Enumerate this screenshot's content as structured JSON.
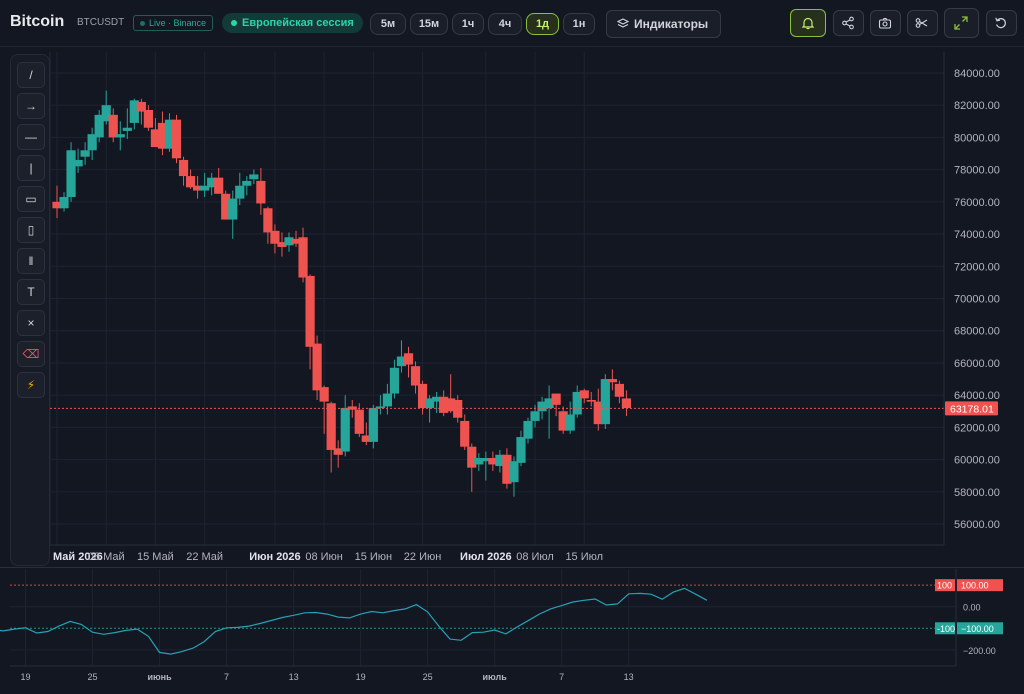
{
  "header": {
    "title": "Bitcoin",
    "symbol": "BTCUSDT",
    "source_badge": "Live · Binance",
    "session_badge": "Европейская сессия",
    "timeframes": [
      "5м",
      "15м",
      "1ч",
      "4ч",
      "1д",
      "1н"
    ],
    "active_timeframe": "1д",
    "indicators_label": "Индикаторы",
    "icon_buttons": [
      "bell-icon",
      "share-icon",
      "camera-icon",
      "scissors-icon",
      "expand-icon",
      "reset-icon"
    ]
  },
  "drawing_tools": [
    {
      "name": "trendline-tool",
      "glyph": "/"
    },
    {
      "name": "arrow-tool",
      "glyph": "→"
    },
    {
      "name": "horizontal-line-tool",
      "glyph": "—"
    },
    {
      "name": "vertical-line-tool",
      "glyph": "|"
    },
    {
      "name": "rectangle-tool",
      "glyph": "▭"
    },
    {
      "name": "vertical-rectangle-tool",
      "glyph": "▯"
    },
    {
      "name": "parallel-channel-tool",
      "glyph": "‖"
    },
    {
      "name": "text-tool",
      "glyph": "T"
    },
    {
      "name": "clear-tool",
      "glyph": "×"
    },
    {
      "name": "eraser-tool",
      "glyph": "⌫"
    },
    {
      "name": "lightning-tool",
      "glyph": "⚡"
    }
  ],
  "colors": {
    "background": "#131722",
    "grid": "#1f2330",
    "up": "#26a69a",
    "down": "#ef5350",
    "active": "#8bbf3e",
    "indicator_line": "#26a1b5"
  },
  "chart_data": [
    {
      "type": "candlestick",
      "symbol": "BTCUSDT",
      "interval": "1д",
      "y_axis": {
        "ticks": [
          84000,
          82000,
          80000,
          78000,
          76000,
          74000,
          72000,
          70000,
          68000,
          66000,
          64000,
          62000,
          60000,
          58000,
          56000
        ],
        "labels": [
          "84000.00",
          "82000.00",
          "80000.00",
          "78000.00",
          "76000.00",
          "74000.00",
          "72000.00",
          "70000.00",
          "68000.00",
          "66000.00",
          "64000.00",
          "62000.00",
          "60000.00",
          "58000.00",
          "56000.00"
        ],
        "range": [
          54700,
          85300
        ]
      },
      "x_axis": {
        "labels": [
          "Май 2026",
          "08 Май",
          "15 Май",
          "22 Май",
          "Июн 2026",
          "08 Июн",
          "15 Июн",
          "22 Июн",
          "Июл 2026",
          "08 Июл",
          "15 Июл"
        ],
        "bold_labels": [
          "Май 2026",
          "Июн 2026",
          "Июл 2026"
        ],
        "label_day_index": [
          0,
          7,
          14,
          21,
          31,
          38,
          45,
          52,
          61,
          68,
          75
        ]
      },
      "current_price": 63178.01,
      "current_price_label": "63178.01",
      "start_date": "2026-04-30",
      "candles": [
        {
          "o": 76000,
          "h": 77000,
          "l": 75000,
          "c": 75600
        },
        {
          "o": 75600,
          "h": 76600,
          "l": 75400,
          "c": 76300
        },
        {
          "o": 76300,
          "h": 79700,
          "l": 76000,
          "c": 79200
        },
        {
          "o": 78200,
          "h": 79300,
          "l": 77800,
          "c": 78600
        },
        {
          "o": 78800,
          "h": 79700,
          "l": 78300,
          "c": 79200
        },
        {
          "o": 79200,
          "h": 80600,
          "l": 78600,
          "c": 80200
        },
        {
          "o": 80000,
          "h": 81700,
          "l": 79700,
          "c": 81400
        },
        {
          "o": 81000,
          "h": 82900,
          "l": 80800,
          "c": 82000
        },
        {
          "o": 81400,
          "h": 81800,
          "l": 79700,
          "c": 80000
        },
        {
          "o": 80000,
          "h": 81000,
          "l": 79200,
          "c": 80200
        },
        {
          "o": 80400,
          "h": 81800,
          "l": 79900,
          "c": 80600
        },
        {
          "o": 80900,
          "h": 82400,
          "l": 80500,
          "c": 82300
        },
        {
          "o": 82200,
          "h": 82400,
          "l": 80800,
          "c": 81600
        },
        {
          "o": 81700,
          "h": 82000,
          "l": 80400,
          "c": 80600
        },
        {
          "o": 80500,
          "h": 81200,
          "l": 79700,
          "c": 79400
        },
        {
          "o": 80900,
          "h": 81600,
          "l": 78900,
          "c": 79300
        },
        {
          "o": 79300,
          "h": 81500,
          "l": 79100,
          "c": 81100
        },
        {
          "o": 81100,
          "h": 81400,
          "l": 78400,
          "c": 78700
        },
        {
          "o": 78600,
          "h": 78800,
          "l": 77000,
          "c": 77600
        },
        {
          "o": 77600,
          "h": 78000,
          "l": 76800,
          "c": 76900
        },
        {
          "o": 77000,
          "h": 77600,
          "l": 76200,
          "c": 76700
        },
        {
          "o": 76700,
          "h": 77800,
          "l": 76300,
          "c": 77000
        },
        {
          "o": 76900,
          "h": 77800,
          "l": 76400,
          "c": 77500
        },
        {
          "o": 77500,
          "h": 78100,
          "l": 76500,
          "c": 76500
        },
        {
          "o": 76500,
          "h": 76700,
          "l": 74900,
          "c": 74900
        },
        {
          "o": 74900,
          "h": 76700,
          "l": 73700,
          "c": 76200
        },
        {
          "o": 76200,
          "h": 77800,
          "l": 75800,
          "c": 77000
        },
        {
          "o": 77000,
          "h": 77600,
          "l": 76400,
          "c": 77300
        },
        {
          "o": 77400,
          "h": 78000,
          "l": 77100,
          "c": 77700
        },
        {
          "o": 77300,
          "h": 78100,
          "l": 75200,
          "c": 75900
        },
        {
          "o": 75600,
          "h": 75700,
          "l": 73400,
          "c": 74100
        },
        {
          "o": 74200,
          "h": 74600,
          "l": 72800,
          "c": 73400
        },
        {
          "o": 73500,
          "h": 74100,
          "l": 72600,
          "c": 73200
        },
        {
          "o": 73300,
          "h": 74100,
          "l": 72900,
          "c": 73800
        },
        {
          "o": 73700,
          "h": 74200,
          "l": 73200,
          "c": 73400
        },
        {
          "o": 73800,
          "h": 74400,
          "l": 71000,
          "c": 71300
        },
        {
          "o": 71400,
          "h": 71500,
          "l": 65600,
          "c": 67000
        },
        {
          "o": 67200,
          "h": 67700,
          "l": 63700,
          "c": 64300
        },
        {
          "o": 64500,
          "h": 64600,
          "l": 61600,
          "c": 63600
        },
        {
          "o": 63500,
          "h": 63600,
          "l": 59200,
          "c": 60600
        },
        {
          "o": 60700,
          "h": 61200,
          "l": 59500,
          "c": 60300
        },
        {
          "o": 60500,
          "h": 64000,
          "l": 60200,
          "c": 63200
        },
        {
          "o": 63300,
          "h": 63700,
          "l": 62600,
          "c": 63100
        },
        {
          "o": 63100,
          "h": 63500,
          "l": 61400,
          "c": 61600
        },
        {
          "o": 61500,
          "h": 62300,
          "l": 60900,
          "c": 61100
        },
        {
          "o": 61100,
          "h": 63400,
          "l": 60700,
          "c": 63200
        },
        {
          "o": 63200,
          "h": 64000,
          "l": 62800,
          "c": 63300
        },
        {
          "o": 63300,
          "h": 64700,
          "l": 62800,
          "c": 64100
        },
        {
          "o": 64100,
          "h": 66200,
          "l": 63800,
          "c": 65700
        },
        {
          "o": 65800,
          "h": 67400,
          "l": 65400,
          "c": 66400
        },
        {
          "o": 66600,
          "h": 67000,
          "l": 65100,
          "c": 65900
        },
        {
          "o": 65800,
          "h": 66100,
          "l": 64100,
          "c": 64600
        },
        {
          "o": 64700,
          "h": 64900,
          "l": 62800,
          "c": 63200
        },
        {
          "o": 63200,
          "h": 64000,
          "l": 62300,
          "c": 63800
        },
        {
          "o": 63600,
          "h": 64200,
          "l": 62900,
          "c": 63900
        },
        {
          "o": 63900,
          "h": 64300,
          "l": 62700,
          "c": 62900
        },
        {
          "o": 63800,
          "h": 65300,
          "l": 62900,
          "c": 63000
        },
        {
          "o": 63700,
          "h": 64000,
          "l": 62300,
          "c": 62600
        },
        {
          "o": 62400,
          "h": 62800,
          "l": 60600,
          "c": 60800
        },
        {
          "o": 60800,
          "h": 61000,
          "l": 58000,
          "c": 59500
        },
        {
          "o": 59700,
          "h": 60400,
          "l": 59300,
          "c": 60100
        },
        {
          "o": 59900,
          "h": 60500,
          "l": 58700,
          "c": 60100
        },
        {
          "o": 60100,
          "h": 60500,
          "l": 59300,
          "c": 59700
        },
        {
          "o": 59600,
          "h": 60600,
          "l": 59200,
          "c": 60300
        },
        {
          "o": 60300,
          "h": 60700,
          "l": 58200,
          "c": 58500
        },
        {
          "o": 58600,
          "h": 60200,
          "l": 57700,
          "c": 59900
        },
        {
          "o": 59800,
          "h": 61800,
          "l": 59600,
          "c": 61400
        },
        {
          "o": 61300,
          "h": 62600,
          "l": 61000,
          "c": 62400
        },
        {
          "o": 62400,
          "h": 63400,
          "l": 62000,
          "c": 63000
        },
        {
          "o": 63000,
          "h": 63900,
          "l": 62500,
          "c": 63600
        },
        {
          "o": 63200,
          "h": 64600,
          "l": 61300,
          "c": 63800
        },
        {
          "o": 64100,
          "h": 64100,
          "l": 62700,
          "c": 63400
        },
        {
          "o": 63000,
          "h": 63300,
          "l": 61600,
          "c": 61800
        },
        {
          "o": 61800,
          "h": 63600,
          "l": 61600,
          "c": 62800
        },
        {
          "o": 62800,
          "h": 64600,
          "l": 62600,
          "c": 64200
        },
        {
          "o": 64300,
          "h": 64400,
          "l": 63500,
          "c": 63800
        },
        {
          "o": 63700,
          "h": 64200,
          "l": 63300,
          "c": 63600
        },
        {
          "o": 63600,
          "h": 64400,
          "l": 61800,
          "c": 62200
        },
        {
          "o": 62200,
          "h": 65300,
          "l": 61900,
          "c": 65000
        },
        {
          "o": 65000,
          "h": 65600,
          "l": 64300,
          "c": 64800
        },
        {
          "o": 64700,
          "h": 64900,
          "l": 63500,
          "c": 63900
        },
        {
          "o": 63800,
          "h": 64300,
          "l": 62700,
          "c": 63200
        }
      ]
    },
    {
      "type": "line",
      "pane": "indicator",
      "y_axis": {
        "ticks": [
          0,
          -200
        ],
        "labels": [
          "0.00",
          "−200.00"
        ],
        "range": [
          -275,
          175
        ]
      },
      "levels": [
        {
          "value": 100,
          "label": "100.00",
          "tag": "100",
          "color": "#ef5350"
        },
        {
          "value": -100,
          "label": "−100.00",
          "tag": "-100",
          "color": "#26a69a"
        }
      ],
      "x_axis": {
        "labels": [
          "19",
          "25",
          "июнь",
          "7",
          "13",
          "19",
          "25",
          "июль",
          "7",
          "13"
        ],
        "bold_labels": [
          "июнь",
          "июль"
        ],
        "label_day_index": [
          -11,
          -5,
          1,
          7,
          13,
          19,
          25,
          31,
          37,
          43
        ]
      },
      "series": [
        {
          "values": [
            -100,
            -105,
            -112,
            -104,
            -98,
            -122,
            -115,
            -90,
            -68,
            -82,
            -118,
            -128,
            -120,
            -110,
            -104,
            -137,
            -212,
            -220,
            -208,
            -192,
            -162,
            -115,
            -98,
            -96,
            -90,
            -78,
            -64,
            -50,
            -40,
            -28,
            -27,
            -34,
            -48,
            -52,
            -34,
            -22,
            -28,
            -18,
            -10,
            10,
            -24,
            -90,
            -150,
            -156,
            -120,
            -118,
            -108,
            -126,
            -94,
            -65,
            -34,
            -10,
            5,
            22,
            30,
            36,
            8,
            13,
            60,
            62,
            58,
            35,
            68,
            85,
            58,
            30
          ]
        }
      ]
    }
  ]
}
